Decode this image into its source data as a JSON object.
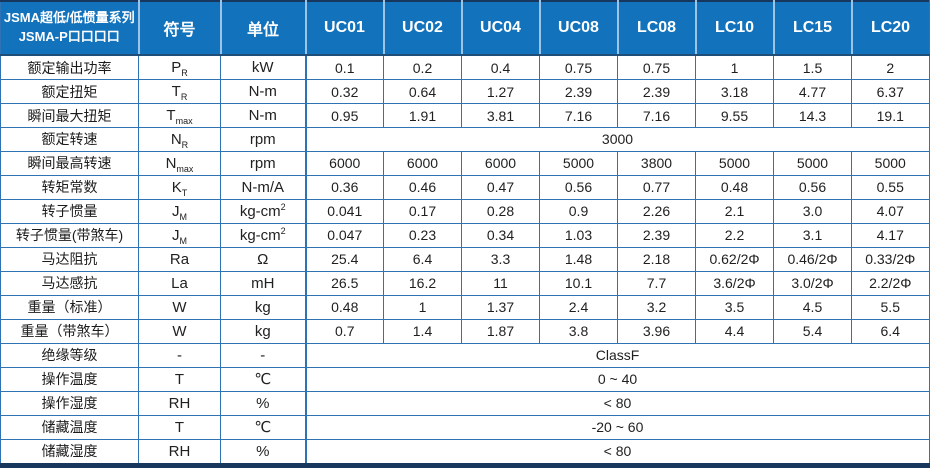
{
  "table": {
    "title_line1": "JSMA超低/低惯量系列",
    "title_line2": "JSMA-P口口口口",
    "symbol_header": "符号",
    "unit_header": "单位",
    "models": [
      "UC01",
      "UC02",
      "UC04",
      "UC08",
      "LC08",
      "LC10",
      "LC15",
      "LC20"
    ],
    "rows": [
      {
        "label": "额定输出功率",
        "sym": "P",
        "sub": "R",
        "unit": "kW",
        "values": [
          "0.1",
          "0.2",
          "0.4",
          "0.75",
          "0.75",
          "1",
          "1.5",
          "2"
        ]
      },
      {
        "label": "额定扭矩",
        "sym": "T",
        "sub": "R",
        "unit": "N-m",
        "values": [
          "0.32",
          "0.64",
          "1.27",
          "2.39",
          "2.39",
          "3.18",
          "4.77",
          "6.37"
        ]
      },
      {
        "label": "瞬间最大扭矩",
        "sym": "T",
        "sub": "max",
        "unit": "N-m",
        "values": [
          "0.95",
          "1.91",
          "3.81",
          "7.16",
          "7.16",
          "9.55",
          "14.3",
          "19.1"
        ]
      },
      {
        "label": "额定转速",
        "sym": "N",
        "sub": "R",
        "unit": "rpm",
        "merged": "3000"
      },
      {
        "label": "瞬间最高转速",
        "sym": "N",
        "sub": "max",
        "unit": "rpm",
        "values": [
          "6000",
          "6000",
          "6000",
          "5000",
          "3800",
          "5000",
          "5000",
          "5000"
        ]
      },
      {
        "label": "转矩常数",
        "sym": "K",
        "sub": "T",
        "unit": "N-m/A",
        "values": [
          "0.36",
          "0.46",
          "0.47",
          "0.56",
          "0.77",
          "0.48",
          "0.56",
          "0.55"
        ]
      },
      {
        "label": "转子惯量",
        "sym": "J",
        "sub": "M",
        "unit": "kg-cm",
        "unit_sup": "2",
        "values": [
          "0.041",
          "0.17",
          "0.28",
          "0.9",
          "2.26",
          "2.1",
          "3.0",
          "4.07"
        ]
      },
      {
        "label": "转子惯量(带煞车)",
        "sym": "J",
        "sub": "M",
        "unit": "kg-cm",
        "unit_sup": "2",
        "values": [
          "0.047",
          "0.23",
          "0.34",
          "1.03",
          "2.39",
          "2.2",
          "3.1",
          "4.17"
        ]
      },
      {
        "label": "马达阻抗",
        "sym": "Ra",
        "sub": "",
        "unit": "Ω",
        "values": [
          "25.4",
          "6.4",
          "3.3",
          "1.48",
          "2.18",
          "0.62/2Φ",
          "0.46/2Φ",
          "0.33/2Φ"
        ]
      },
      {
        "label": "马达感抗",
        "sym": "La",
        "sub": "",
        "unit": "mH",
        "values": [
          "26.5",
          "16.2",
          "11",
          "10.1",
          "7.7",
          "3.6/2Φ",
          "3.0/2Φ",
          "2.2/2Φ"
        ]
      },
      {
        "label": "重量（标准）",
        "sym": "W",
        "sub": "",
        "unit": "kg",
        "values": [
          "0.48",
          "1",
          "1.37",
          "2.4",
          "3.2",
          "3.5",
          "4.5",
          "5.5"
        ]
      },
      {
        "label": "重量（带煞车）",
        "sym": "W",
        "sub": "",
        "unit": "kg",
        "values": [
          "0.7",
          "1.4",
          "1.87",
          "3.8",
          "3.96",
          "4.4",
          "5.4",
          "6.4"
        ]
      },
      {
        "label": "绝缘等级",
        "sym": "-",
        "sub": "",
        "unit": "-",
        "merged": "ClassF"
      },
      {
        "label": "操作温度",
        "sym": "T",
        "sub": "",
        "unit": "℃",
        "merged": "0 ~ 40"
      },
      {
        "label": "操作湿度",
        "sym": "RH",
        "sub": "",
        "unit": "%",
        "merged": "< 80"
      },
      {
        "label": "储藏温度",
        "sym": "T",
        "sub": "",
        "unit": "℃",
        "merged": "-20 ~ 60"
      },
      {
        "label": "储藏湿度",
        "sym": "RH",
        "sub": "",
        "unit": "%",
        "merged": "< 80"
      }
    ],
    "colors": {
      "header_bg": "#1272BC",
      "header_text": "#FFFFFF",
      "border": "#2E74B5",
      "header_separator": "#9DC3E6",
      "outer_dark": "#17375E",
      "body_text": "#212121"
    }
  }
}
